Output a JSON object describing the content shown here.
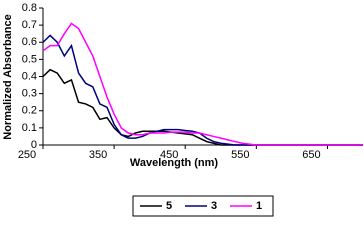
{
  "chart_data": {
    "type": "line",
    "xlabel": "Wavelength (nm)",
    "ylabel": "Normalized Absorbance",
    "x": [
      250,
      260,
      270,
      280,
      290,
      300,
      310,
      320,
      330,
      340,
      350,
      360,
      370,
      380,
      390,
      400,
      410,
      420,
      430,
      440,
      450,
      460,
      470,
      480,
      490,
      500,
      510,
      520,
      530,
      540,
      550,
      560,
      570,
      580,
      590,
      600,
      610,
      620,
      630,
      640,
      650,
      660,
      670,
      680,
      690,
      700
    ],
    "series": [
      {
        "name": "5",
        "color": "#000000",
        "values": [
          0.4,
          0.44,
          0.42,
          0.36,
          0.38,
          0.25,
          0.24,
          0.22,
          0.15,
          0.16,
          0.1,
          0.06,
          0.05,
          0.07,
          0.08,
          0.08,
          0.08,
          0.08,
          0.075,
          0.07,
          0.065,
          0.06,
          0.04,
          0.02,
          0.01,
          0,
          0,
          0,
          0,
          0,
          0,
          0,
          0,
          0,
          0,
          0,
          0,
          0,
          0,
          0,
          0,
          0,
          0,
          0,
          0,
          0
        ]
      },
      {
        "name": "3",
        "color": "#000080",
        "values": [
          0.6,
          0.64,
          0.6,
          0.52,
          0.58,
          0.42,
          0.36,
          0.34,
          0.24,
          0.22,
          0.12,
          0.06,
          0.04,
          0.04,
          0.05,
          0.07,
          0.08,
          0.09,
          0.09,
          0.09,
          0.085,
          0.08,
          0.07,
          0.04,
          0.02,
          0.01,
          0.005,
          0,
          0,
          0,
          0,
          0,
          0,
          0,
          0,
          0,
          0,
          0,
          0,
          0,
          0,
          0,
          0,
          0,
          0,
          0
        ]
      },
      {
        "name": "1",
        "color": "#ff00ff",
        "values": [
          0.55,
          0.58,
          0.58,
          0.65,
          0.71,
          0.68,
          0.6,
          0.52,
          0.4,
          0.28,
          0.18,
          0.1,
          0.07,
          0.06,
          0.06,
          0.07,
          0.07,
          0.07,
          0.075,
          0.075,
          0.075,
          0.07,
          0.07,
          0.06,
          0.05,
          0.04,
          0.03,
          0.02,
          0.01,
          0.005,
          0,
          0,
          0,
          0,
          0,
          0,
          0,
          0,
          0,
          0,
          0,
          0,
          0,
          0,
          0,
          0
        ]
      }
    ],
    "xlim": [
      250,
      700
    ],
    "xticks": [
      250,
      350,
      450,
      550,
      650
    ],
    "ylim": [
      0,
      0.8
    ],
    "yticks": [
      0,
      0.1,
      0.2,
      0.3,
      0.4,
      0.5,
      0.6,
      0.7,
      0.8
    ],
    "legend": "bottom"
  }
}
